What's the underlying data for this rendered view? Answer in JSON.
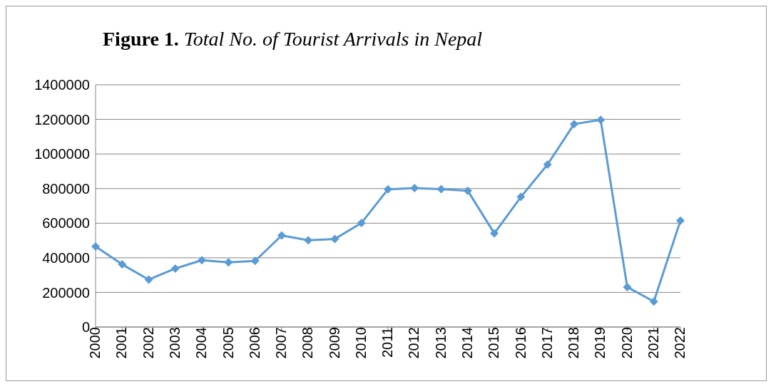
{
  "chart_data": {
    "type": "line",
    "title": "Figure 1. Total No. of Tourist Arrivals in Nepal",
    "categories": [
      "2000",
      "2001",
      "2002",
      "2003",
      "2004",
      "2005",
      "2006",
      "2007",
      "2008",
      "2009",
      "2010",
      "2011",
      "2012",
      "2013",
      "2014",
      "2015",
      "2016",
      "2017",
      "2018",
      "2019",
      "2020",
      "2021",
      "2022"
    ],
    "series": [
      {
        "color": "#5b9bd5",
        "values": [
          465000,
          362000,
          274000,
          338000,
          386000,
          374000,
          382000,
          529000,
          501000,
          509000,
          601000,
          796000,
          803000,
          797000,
          788000,
          541000,
          752000,
          939000,
          1173000,
          1197000,
          231000,
          147000,
          615000
        ]
      }
    ],
    "ylim": [
      0,
      1400000
    ],
    "yticks": [
      0,
      200000,
      400000,
      600000,
      800000,
      1000000,
      1200000,
      1400000
    ],
    "grid": "y",
    "legend": false,
    "marker": "diamond",
    "line_style": "solid"
  }
}
